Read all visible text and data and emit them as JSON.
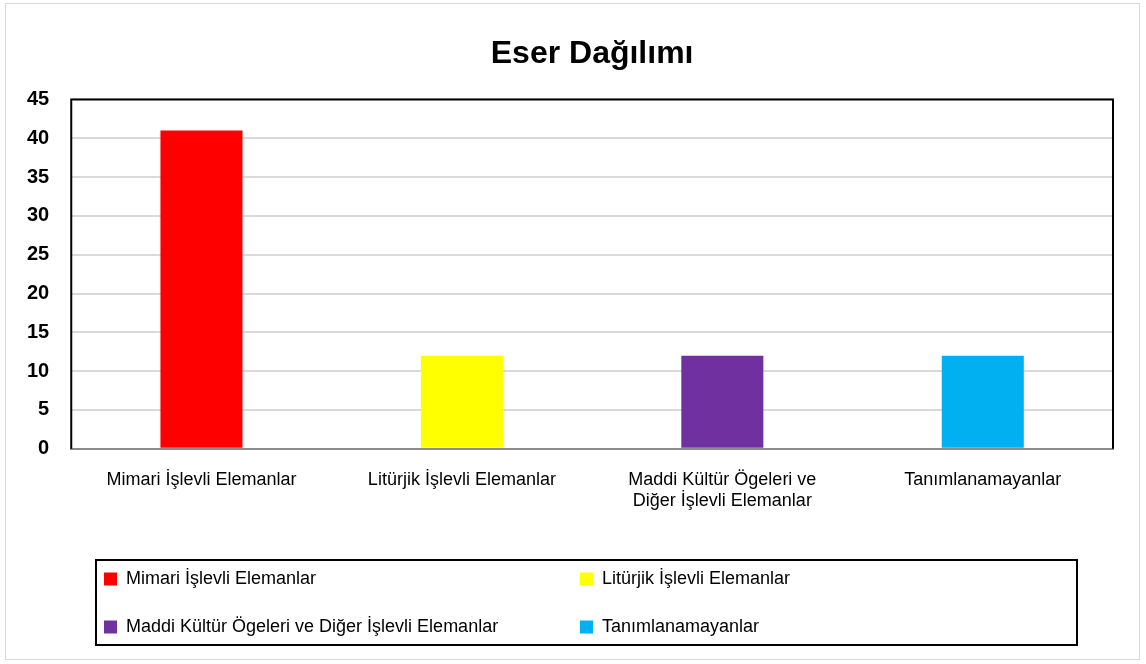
{
  "chart_data": {
    "type": "bar",
    "title": "Eser Dağılımı",
    "categories": [
      "Mimari İşlevli Elemanlar",
      "Litürjik İşlevli Elemanlar",
      "Maddi Kültür Ögeleri ve Diğer İşlevli Elemanlar",
      "Tanımlanamayanlar"
    ],
    "series": [
      {
        "name": "Mimari İşlevli Elemanlar",
        "color": "#ff0000",
        "values": [
          41,
          null,
          null,
          null
        ]
      },
      {
        "name": "Litürjik İşlevli Elemanlar",
        "color": "#ffff00",
        "values": [
          null,
          12,
          null,
          null
        ]
      },
      {
        "name": "Maddi Kültür Ögeleri ve Diğer İşlevli Elemanlar",
        "color": "#7030a0",
        "values": [
          null,
          null,
          12,
          null
        ]
      },
      {
        "name": "Tanımlanamayanlar",
        "color": "#00b0f0",
        "values": [
          null,
          null,
          null,
          12
        ]
      }
    ],
    "ylim": [
      0,
      45
    ],
    "yticks": [
      0,
      5,
      10,
      15,
      20,
      25,
      30,
      35,
      40,
      45
    ],
    "grid": "y",
    "legend": "bottom"
  }
}
